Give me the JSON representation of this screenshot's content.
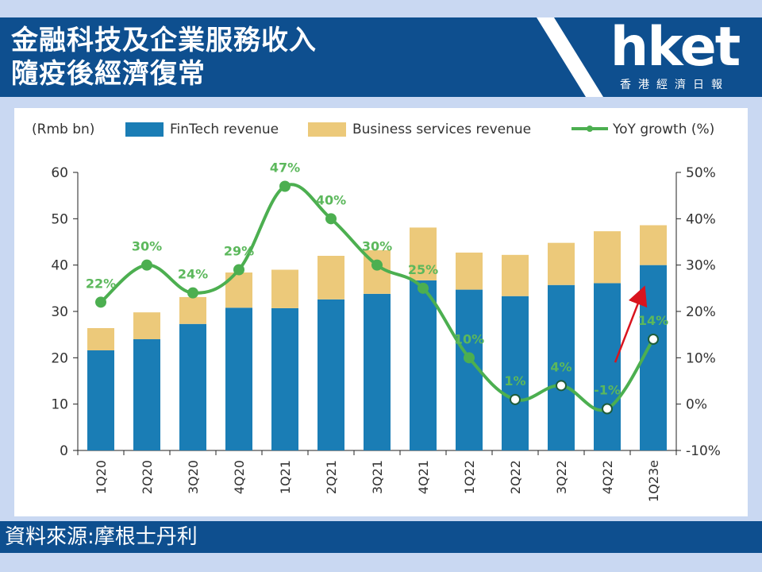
{
  "header": {
    "title_line1": "金融科技及企業服務收入",
    "title_line2": "隨疫後經濟復常"
  },
  "logo": {
    "text": "hket",
    "subtitle": "香港經濟日報"
  },
  "footer": {
    "source": "資料來源:摩根士丹利"
  },
  "colors": {
    "fintech": "#1a7db5",
    "business": "#ecc97a",
    "growth": "#4caf50",
    "growth_label": "#5cb85c",
    "arrow": "#d9141e",
    "header": "#0e4f8f",
    "background": "#c9d8f2"
  },
  "chart_data": {
    "type": "bar",
    "stacked": true,
    "unit_label": "(Rmb bn)",
    "categories": [
      "1Q20",
      "2Q20",
      "3Q20",
      "4Q20",
      "1Q21",
      "2Q21",
      "3Q21",
      "4Q21",
      "1Q22",
      "2Q22",
      "3Q22",
      "4Q22",
      "1Q23e"
    ],
    "series": [
      {
        "name": "FinTech revenue",
        "kind": "bar",
        "axis": "left",
        "values": [
          21.6,
          24.0,
          27.3,
          30.8,
          30.7,
          32.6,
          33.8,
          36.7,
          34.7,
          33.3,
          35.7,
          36.1,
          40.0
        ]
      },
      {
        "name": "Business services revenue",
        "kind": "bar",
        "axis": "left",
        "values": [
          4.8,
          5.8,
          5.8,
          7.6,
          8.3,
          9.4,
          9.4,
          11.4,
          8.0,
          8.9,
          9.1,
          11.2,
          8.6
        ]
      },
      {
        "name": "YoY growth (%)",
        "kind": "line",
        "axis": "right",
        "values": [
          22,
          30,
          24,
          29,
          47,
          40,
          30,
          25,
          10,
          1,
          4,
          -1,
          14
        ],
        "labels": [
          "22%",
          "30%",
          "24%",
          "29%",
          "47%",
          "40%",
          "30%",
          "25%",
          "10%",
          "1%",
          "4%",
          "-1%",
          "14%"
        ]
      }
    ],
    "y_left": {
      "min": 0,
      "max": 60,
      "ticks": [
        "0",
        "10",
        "20",
        "30",
        "40",
        "50",
        "60"
      ]
    },
    "y_right": {
      "min": -10,
      "max": 50,
      "ticks": [
        "-10%",
        "0%",
        "10%",
        "20%",
        "30%",
        "40%",
        "50%"
      ]
    },
    "legend_position": "top",
    "grid": false,
    "annotation": "red upward arrow toward 1Q23e"
  }
}
